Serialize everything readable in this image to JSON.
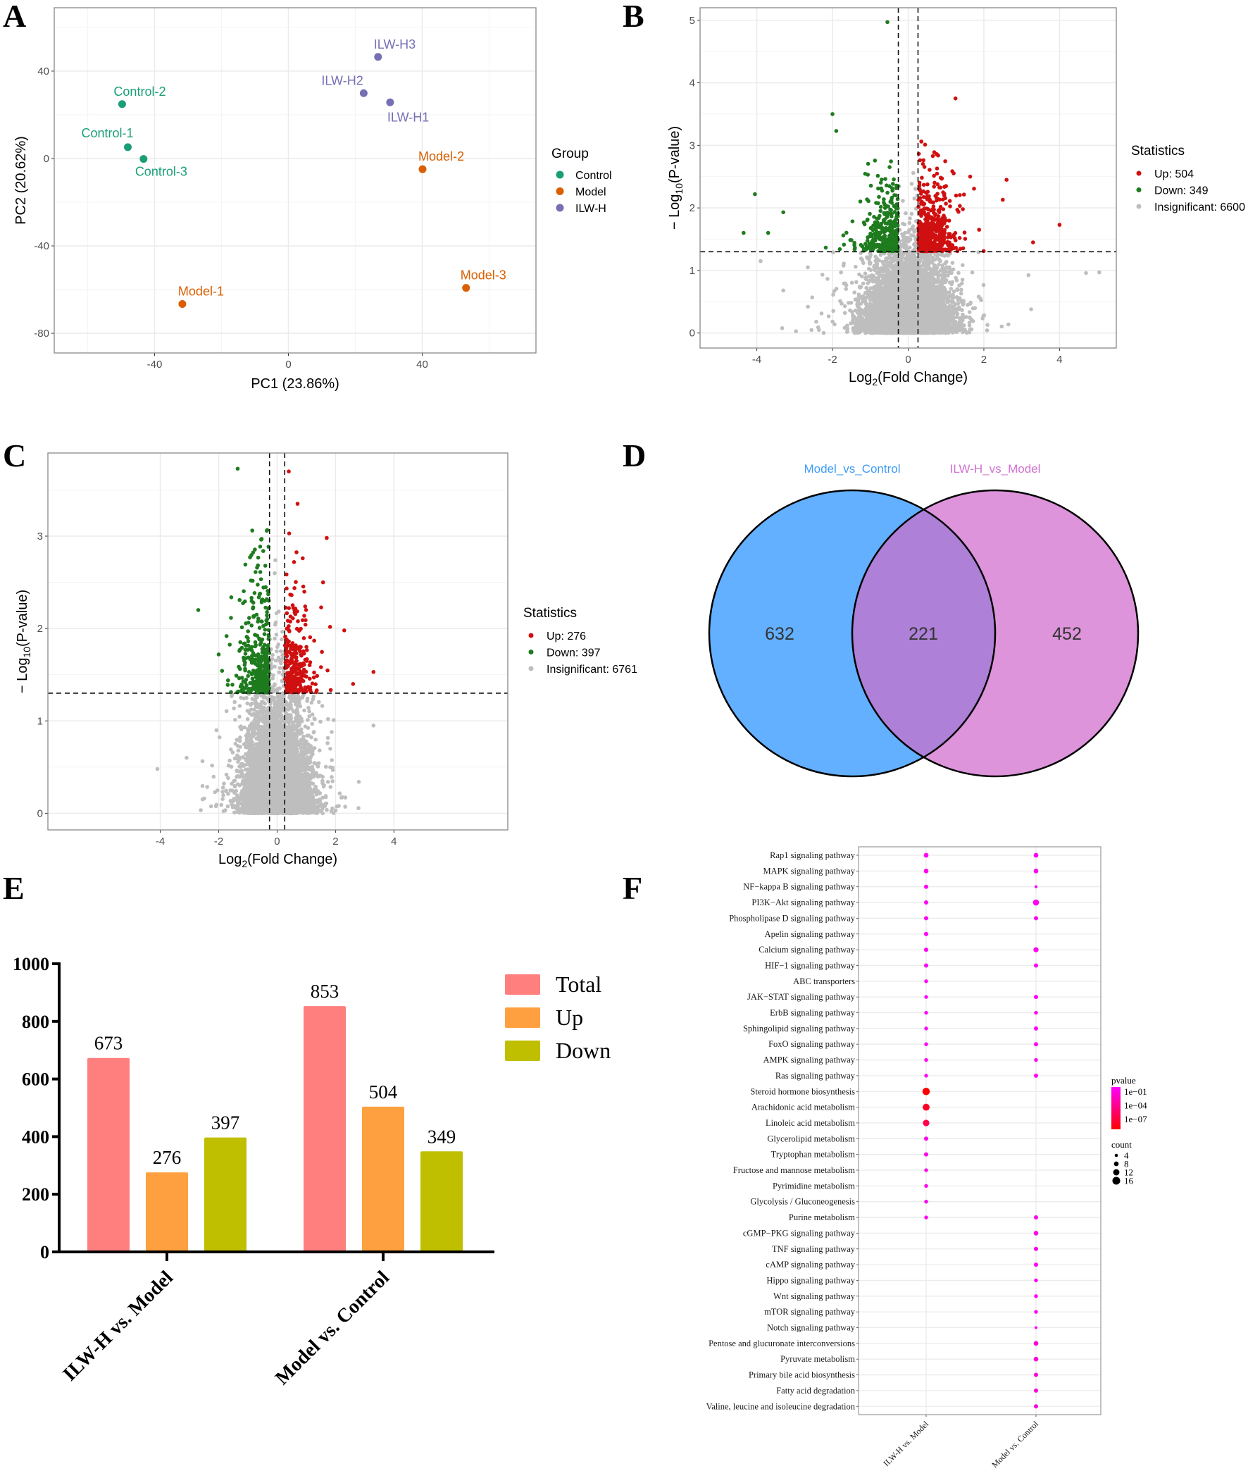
{
  "panel_labels": {
    "A": "A",
    "B": "B",
    "C": "C",
    "D": "D",
    "E": "E",
    "F": "F"
  },
  "chart_data": [
    {
      "panel": "A",
      "type": "scatter",
      "xlabel": "PC1 (23.86%)",
      "ylabel": "PC2 (20.62%)",
      "xlim": [
        -70,
        74
      ],
      "ylim": [
        -89,
        69
      ],
      "xticks": [
        -40,
        0,
        40
      ],
      "yticks": [
        -80,
        -40,
        0,
        40
      ],
      "grid": true,
      "legend": {
        "title": "Group",
        "position": "right",
        "items": [
          {
            "label": "Control",
            "color": "#1B9E77"
          },
          {
            "label": "Model",
            "color": "#D95F02"
          },
          {
            "label": "ILW-H",
            "color": "#7570B3"
          }
        ]
      },
      "points": [
        {
          "label": "Control-1",
          "group": "Control",
          "x": -48,
          "y": 5.2
        },
        {
          "label": "Control-2",
          "group": "Control",
          "x": -49.7,
          "y": 24.9
        },
        {
          "label": "Control-3",
          "group": "Control",
          "x": -43.3,
          "y": -0.2
        },
        {
          "label": "Model-1",
          "group": "Model",
          "x": -31.7,
          "y": -66.6
        },
        {
          "label": "Model-2",
          "group": "Model",
          "x": 40.1,
          "y": -4.9
        },
        {
          "label": "Model-3",
          "group": "Model",
          "x": 53.1,
          "y": -59.2
        },
        {
          "label": "ILW-H1",
          "group": "ILW-H",
          "x": 30.4,
          "y": 25.7
        },
        {
          "label": "ILW-H2",
          "group": "ILW-H",
          "x": 22.5,
          "y": 29.9
        },
        {
          "label": "ILW-H3",
          "group": "ILW-H",
          "x": 26.8,
          "y": 46.5
        }
      ]
    },
    {
      "panel": "B",
      "type": "scatter",
      "xlabel": {
        "base": "Log",
        "sub": "2",
        "rest": "(Fold Change)"
      },
      "ylabel": {
        "base": "− Log",
        "sub": "10",
        "rest": "(P-value)"
      },
      "xlim": [
        -5.5,
        5.5
      ],
      "ylim": [
        -0.24,
        5.2
      ],
      "xticks": [
        -4,
        -2,
        0,
        2,
        4
      ],
      "yticks": [
        0,
        1,
        2,
        3,
        4,
        5
      ],
      "grid": true,
      "thresholds": {
        "log2fc": [
          -0.26,
          0.26
        ],
        "neg_log10_p": 1.3
      },
      "legend": {
        "title": "Statistics",
        "position": "right",
        "items": [
          {
            "label": "Up: 504",
            "category": "up",
            "count": 504,
            "color": "#D01010"
          },
          {
            "label": "Down: 349",
            "category": "down",
            "count": 349,
            "color": "#1E7B1E"
          },
          {
            "label": "Insignificant: 6600",
            "category": "insignificant",
            "count": 6600,
            "color": "#BEBEBE"
          }
        ]
      },
      "highlighted_points": [
        {
          "x": -0.55,
          "y": 4.97,
          "category": "down"
        },
        {
          "x": -2.0,
          "y": 3.5,
          "category": "down"
        },
        {
          "x": -1.9,
          "y": 3.23,
          "category": "down"
        },
        {
          "x": -4.05,
          "y": 2.22,
          "category": "down"
        },
        {
          "x": -3.3,
          "y": 1.93,
          "category": "down"
        },
        {
          "x": -4.35,
          "y": 1.6,
          "category": "down"
        },
        {
          "x": -3.7,
          "y": 1.6,
          "category": "down"
        },
        {
          "x": 1.25,
          "y": 3.75,
          "category": "up"
        },
        {
          "x": 4.0,
          "y": 1.73,
          "category": "up"
        },
        {
          "x": 3.3,
          "y": 1.45,
          "category": "up"
        },
        {
          "x": 2.6,
          "y": 2.45,
          "category": "up"
        },
        {
          "x": 2.5,
          "y": 2.13,
          "category": "up"
        },
        {
          "x": 4.7,
          "y": 0.96,
          "category": "insignificant"
        },
        {
          "x": 5.05,
          "y": 0.97,
          "category": "insignificant"
        },
        {
          "x": -3.9,
          "y": 1.15,
          "category": "insignificant"
        },
        {
          "x": -3.3,
          "y": 0.68,
          "category": "insignificant"
        },
        {
          "x": -2.65,
          "y": 0.42,
          "category": "insignificant"
        },
        {
          "x": 3.25,
          "y": 0.38,
          "category": "insignificant"
        }
      ]
    },
    {
      "panel": "C",
      "type": "scatter",
      "xlabel": {
        "base": "Log",
        "sub": "2",
        "rest": "(Fold Change)"
      },
      "ylabel": {
        "base": "− Log",
        "sub": "10",
        "rest": "(P-value)"
      },
      "xlim": [
        -7.85,
        7.9
      ],
      "ylim": [
        -0.18,
        3.9
      ],
      "xticks": [
        -4,
        -2,
        0,
        2,
        4
      ],
      "yticks": [
        0,
        1,
        2,
        3
      ],
      "grid": true,
      "thresholds": {
        "log2fc": [
          -0.26,
          0.26
        ],
        "neg_log10_p": 1.3
      },
      "legend": {
        "title": "Statistics",
        "position": "right",
        "items": [
          {
            "label": "Up: 276",
            "category": "up",
            "count": 276,
            "color": "#D01010"
          },
          {
            "label": "Down: 397",
            "category": "down",
            "count": 397,
            "color": "#1E7B1E"
          },
          {
            "label": "Insignificant: 6761",
            "category": "insignificant",
            "count": 6761,
            "color": "#BEBEBE"
          }
        ]
      },
      "highlighted_points": [
        {
          "x": -1.35,
          "y": 3.73,
          "category": "down"
        },
        {
          "x": -2.7,
          "y": 2.2,
          "category": "down"
        },
        {
          "x": -2.0,
          "y": 1.72,
          "category": "down"
        },
        {
          "x": -0.85,
          "y": 3.06,
          "category": "down"
        },
        {
          "x": 0.4,
          "y": 3.7,
          "category": "up"
        },
        {
          "x": 0.7,
          "y": 3.35,
          "category": "up"
        },
        {
          "x": 1.7,
          "y": 2.98,
          "category": "up"
        },
        {
          "x": 2.3,
          "y": 1.98,
          "category": "up"
        },
        {
          "x": 3.3,
          "y": 1.53,
          "category": "up"
        },
        {
          "x": 2.6,
          "y": 1.4,
          "category": "up"
        },
        {
          "x": 3.3,
          "y": 0.95,
          "category": "insignificant"
        },
        {
          "x": -4.1,
          "y": 0.48,
          "category": "insignificant"
        },
        {
          "x": -3.1,
          "y": 0.6,
          "category": "insignificant"
        },
        {
          "x": 2.2,
          "y": 0.17,
          "category": "insignificant"
        }
      ]
    },
    {
      "panel": "D",
      "type": "venn",
      "sets": [
        {
          "name": "Model_vs_Control",
          "color": "#62B0FF",
          "label_color": "#3D9BF5"
        },
        {
          "name": "ILW-H_vs_Model",
          "color": "#DD94DB",
          "label_color": "#D171D1"
        }
      ],
      "overlap_color": "#AE80D8",
      "regions": {
        "only_first": 632,
        "both": 221,
        "only_second": 452
      }
    },
    {
      "panel": "E",
      "type": "bar",
      "categories": [
        "ILW-H vs. Model",
        "Model vs. Control"
      ],
      "series": [
        {
          "name": "Total",
          "values": [
            673,
            853
          ],
          "color": "#FF7F7F"
        },
        {
          "name": "Up",
          "values": [
            276,
            504
          ],
          "color": "#FFA040"
        },
        {
          "name": "Down",
          "values": [
            397,
            349
          ],
          "color": "#BFBF00"
        }
      ],
      "ylim": [
        0,
        1000
      ],
      "yticks": [
        0,
        200,
        400,
        600,
        800,
        1000
      ],
      "legend_position": "top-right"
    },
    {
      "panel": "F",
      "type": "dot",
      "columns": [
        "ILW-H vs. Model",
        "Model vs. Control"
      ],
      "rows": [
        "Rap1 signaling pathway",
        "MAPK signaling pathway",
        "NF−kappa B signaling pathway",
        "PI3K−Akt signaling pathway",
        "Phospholipase D signaling pathway",
        "Apelin signaling pathway",
        "Calcium signaling pathway",
        "HIF−1 signaling pathway",
        "ABC transporters",
        "JAK−STAT signaling pathway",
        "ErbB signaling pathway",
        "Sphingolipid signaling pathway",
        "FoxO signaling pathway",
        "AMPK signaling pathway",
        "Ras signaling pathway",
        "Steroid hormone biosynthesis",
        "Arachidonic acid metabolism",
        "Linoleic acid metabolism",
        "Glycerolipid metabolism",
        "Tryptophan metabolism",
        "Fructose and mannose metabolism",
        "Pyrimidine metabolism",
        "Glycolysis / Gluconeogenesis",
        "Purine metabolism",
        "cGMP−PKG signaling pathway",
        "TNF signaling pathway",
        "cAMP signaling pathway",
        "Hippo signaling pathway",
        "Wnt signaling pathway",
        "mTOR signaling pathway",
        "Notch signaling pathway",
        "Pentose and glucuronate interconversions",
        "Pyruvate metabolism",
        "Primary bile acid biosynthesis",
        "Fatty acid degradation",
        "Valine, leucine and isoleucine degradation"
      ],
      "points": [
        {
          "row": 0,
          "col": 0,
          "count": 6,
          "pvalue": 0.05
        },
        {
          "row": 0,
          "col": 1,
          "count": 6,
          "pvalue": 0.05
        },
        {
          "row": 1,
          "col": 0,
          "count": 6,
          "pvalue": 0.05
        },
        {
          "row": 1,
          "col": 1,
          "count": 6,
          "pvalue": 0.05
        },
        {
          "row": 2,
          "col": 0,
          "count": 5,
          "pvalue": 0.06
        },
        {
          "row": 2,
          "col": 1,
          "count": 2,
          "pvalue": 0.1
        },
        {
          "row": 3,
          "col": 0,
          "count": 5,
          "pvalue": 0.06
        },
        {
          "row": 3,
          "col": 1,
          "count": 9,
          "pvalue": 0.04
        },
        {
          "row": 4,
          "col": 0,
          "count": 5,
          "pvalue": 0.06
        },
        {
          "row": 4,
          "col": 1,
          "count": 5,
          "pvalue": 0.05
        },
        {
          "row": 5,
          "col": 0,
          "count": 5,
          "pvalue": 0.06
        },
        {
          "row": 6,
          "col": 0,
          "count": 5,
          "pvalue": 0.06
        },
        {
          "row": 6,
          "col": 1,
          "count": 7,
          "pvalue": 0.04
        },
        {
          "row": 7,
          "col": 0,
          "count": 5,
          "pvalue": 0.06
        },
        {
          "row": 7,
          "col": 1,
          "count": 5,
          "pvalue": 0.05
        },
        {
          "row": 8,
          "col": 0,
          "count": 4,
          "pvalue": 0.07
        },
        {
          "row": 9,
          "col": 0,
          "count": 4,
          "pvalue": 0.07
        },
        {
          "row": 9,
          "col": 1,
          "count": 5,
          "pvalue": 0.05
        },
        {
          "row": 10,
          "col": 0,
          "count": 4,
          "pvalue": 0.07
        },
        {
          "row": 10,
          "col": 1,
          "count": 4,
          "pvalue": 0.06
        },
        {
          "row": 11,
          "col": 0,
          "count": 4,
          "pvalue": 0.07
        },
        {
          "row": 11,
          "col": 1,
          "count": 5,
          "pvalue": 0.05
        },
        {
          "row": 12,
          "col": 0,
          "count": 4,
          "pvalue": 0.07
        },
        {
          "row": 12,
          "col": 1,
          "count": 5,
          "pvalue": 0.05
        },
        {
          "row": 13,
          "col": 0,
          "count": 4,
          "pvalue": 0.07
        },
        {
          "row": 13,
          "col": 1,
          "count": 4,
          "pvalue": 0.06
        },
        {
          "row": 14,
          "col": 0,
          "count": 4,
          "pvalue": 0.07
        },
        {
          "row": 14,
          "col": 1,
          "count": 5,
          "pvalue": 0.05
        },
        {
          "row": 15,
          "col": 0,
          "count": 12,
          "pvalue": 1e-08
        },
        {
          "row": 16,
          "col": 0,
          "count": 11,
          "pvalue": 1e-07
        },
        {
          "row": 17,
          "col": 0,
          "count": 10,
          "pvalue": 1e-06
        },
        {
          "row": 18,
          "col": 0,
          "count": 5,
          "pvalue": 0.03
        },
        {
          "row": 19,
          "col": 0,
          "count": 5,
          "pvalue": 0.03
        },
        {
          "row": 20,
          "col": 0,
          "count": 4,
          "pvalue": 0.04
        },
        {
          "row": 21,
          "col": 0,
          "count": 4,
          "pvalue": 0.05
        },
        {
          "row": 22,
          "col": 0,
          "count": 4,
          "pvalue": 0.05
        },
        {
          "row": 23,
          "col": 0,
          "count": 4,
          "pvalue": 0.06
        },
        {
          "row": 23,
          "col": 1,
          "count": 5,
          "pvalue": 0.03
        },
        {
          "row": 24,
          "col": 1,
          "count": 6,
          "pvalue": 0.03
        },
        {
          "row": 25,
          "col": 1,
          "count": 5,
          "pvalue": 0.03
        },
        {
          "row": 26,
          "col": 1,
          "count": 5,
          "pvalue": 0.04
        },
        {
          "row": 27,
          "col": 1,
          "count": 4,
          "pvalue": 0.05
        },
        {
          "row": 28,
          "col": 1,
          "count": 4,
          "pvalue": 0.05
        },
        {
          "row": 29,
          "col": 1,
          "count": 4,
          "pvalue": 0.05
        },
        {
          "row": 30,
          "col": 1,
          "count": 2,
          "pvalue": 0.1
        },
        {
          "row": 31,
          "col": 1,
          "count": 6,
          "pvalue": 0.01
        },
        {
          "row": 32,
          "col": 1,
          "count": 6,
          "pvalue": 0.01
        },
        {
          "row": 33,
          "col": 1,
          "count": 5,
          "pvalue": 0.01
        },
        {
          "row": 34,
          "col": 1,
          "count": 5,
          "pvalue": 0.01
        },
        {
          "row": 35,
          "col": 1,
          "count": 5,
          "pvalue": 0.01
        }
      ],
      "legend": {
        "pvalue_title": "pvalue",
        "pvalue_labels": [
          "1e−01",
          "1e−04",
          "1e−07"
        ],
        "pvalue_colors": [
          "#FF00FF",
          "#FF0000"
        ],
        "count_title": "count",
        "counts": [
          4,
          8,
          12,
          16
        ]
      }
    }
  ]
}
